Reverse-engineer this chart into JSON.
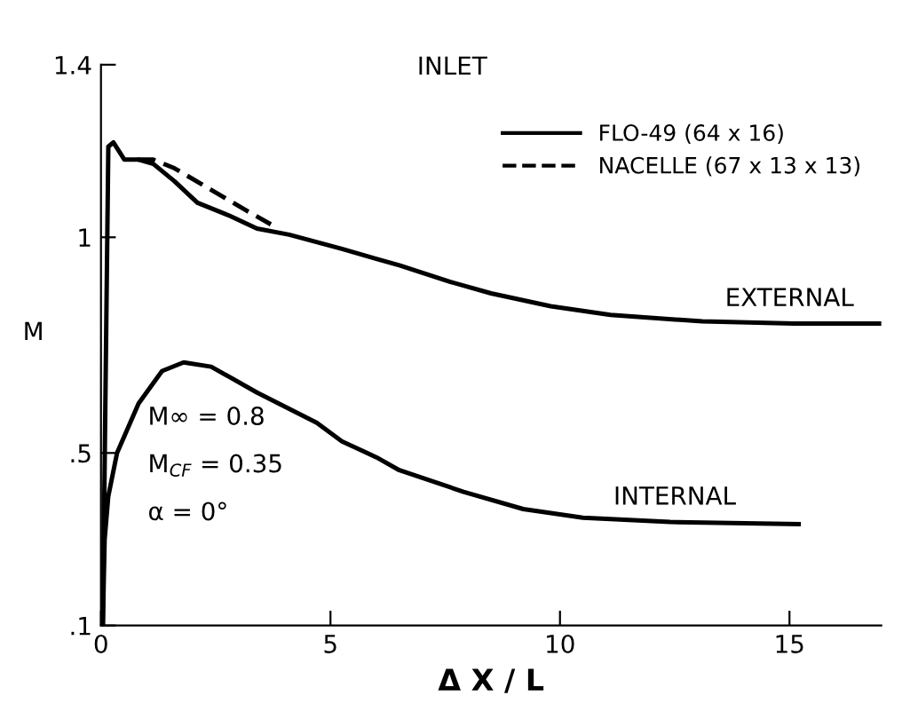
{
  "chart_data": {
    "type": "line",
    "title": "INLET",
    "xlabel": "Δ X / L",
    "ylabel": "M",
    "xlim": [
      0,
      17
    ],
    "xticks": [
      0,
      5,
      10,
      15
    ],
    "ylim": [
      0.1,
      1.4
    ],
    "yticks": [
      1.4,
      1,
      {
        "value": 0.5,
        "label": ".5"
      },
      {
        "value": 0.1,
        "label": ".1"
      }
    ],
    "grid": false,
    "legend": "top right",
    "marker": "none",
    "series": [
      {
        "name": "FLO-49 (64 x 16)",
        "color": "#000000",
        "line_style": "solid",
        "x": [
          0.04,
          0.16,
          0.27,
          0.51,
          0.82,
          1.14,
          1.6,
          2.1,
          2.8,
          3.4,
          4.1,
          5.25,
          6.0,
          6.5,
          7.6,
          8.5,
          9.8,
          11.1,
          13.1,
          15.1,
          17.0
        ],
        "values": [
          0.1,
          1.21,
          1.22,
          1.18,
          1.18,
          1.17,
          1.13,
          1.08,
          1.05,
          1.02,
          1.006,
          0.973,
          0.95,
          0.935,
          0.897,
          0.87,
          0.84,
          0.82,
          0.805,
          0.8,
          0.8
        ]
      },
      {
        "color": "#000000",
        "line_style": "solid",
        "x": [
          0.04,
          0.08,
          0.16,
          0.35,
          0.82,
          1.33,
          1.8,
          2.4,
          3.4,
          4.7,
          5.25,
          6.0,
          6.5,
          7.9,
          9.2,
          10.5,
          12.4,
          15.2
        ],
        "values": [
          0.1,
          0.3,
          0.4,
          0.5,
          0.615,
          0.69,
          0.71,
          0.7,
          0.64,
          0.57,
          0.527,
          0.49,
          0.46,
          0.41,
          0.37,
          0.35,
          0.34,
          0.335
        ]
      },
      {
        "name": "NACELLE (67 x 13 x 13)",
        "color": "#000000",
        "line_style": "dashed",
        "x": [
          0.8,
          1.14,
          1.6,
          2.4,
          3.2,
          3.7
        ],
        "values": [
          1.18,
          1.18,
          1.16,
          1.11,
          1.06,
          1.03
        ]
      }
    ],
    "annotations": [
      {
        "text": "EXTERNAL",
        "x": 15,
        "y": 0.8
      },
      {
        "text": "INTERNAL",
        "x": 12.5,
        "y": 0.34
      },
      "M∞ = 0.8",
      "M$_{CF}$ = 0.35",
      "α = 0°"
    ]
  }
}
